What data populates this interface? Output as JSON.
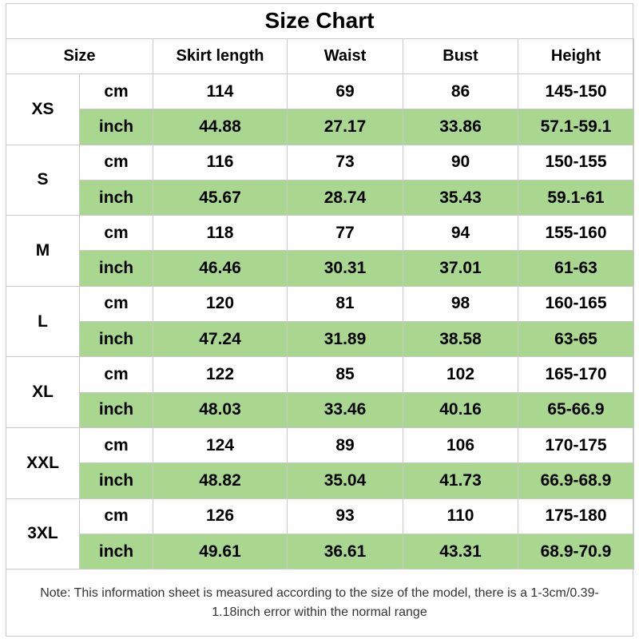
{
  "title": "Size Chart",
  "headers": {
    "size": "Size",
    "skirt_length": "Skirt length",
    "waist": "Waist",
    "bust": "Bust",
    "height": "Height"
  },
  "units": {
    "cm": "cm",
    "inch": "inch"
  },
  "colors": {
    "inch_row_fill": "#a9d790",
    "border": "#c9c9c9"
  },
  "rows": [
    {
      "size": "XS",
      "cm": [
        "114",
        "69",
        "86",
        "145-150"
      ],
      "inch": [
        "44.88",
        "27.17",
        "33.86",
        "57.1-59.1"
      ]
    },
    {
      "size": "S",
      "cm": [
        "116",
        "73",
        "90",
        "150-155"
      ],
      "inch": [
        "45.67",
        "28.74",
        "35.43",
        "59.1-61"
      ]
    },
    {
      "size": "M",
      "cm": [
        "118",
        "77",
        "94",
        "155-160"
      ],
      "inch": [
        "46.46",
        "30.31",
        "37.01",
        "61-63"
      ]
    },
    {
      "size": "L",
      "cm": [
        "120",
        "81",
        "98",
        "160-165"
      ],
      "inch": [
        "47.24",
        "31.89",
        "38.58",
        "63-65"
      ]
    },
    {
      "size": "XL",
      "cm": [
        "122",
        "85",
        "102",
        "165-170"
      ],
      "inch": [
        "48.03",
        "33.46",
        "40.16",
        "65-66.9"
      ]
    },
    {
      "size": "XXL",
      "cm": [
        "124",
        "89",
        "106",
        "170-175"
      ],
      "inch": [
        "48.82",
        "35.04",
        "41.73",
        "66.9-68.9"
      ]
    },
    {
      "size": "3XL",
      "cm": [
        "126",
        "93",
        "110",
        "175-180"
      ],
      "inch": [
        "49.61",
        "36.61",
        "43.31",
        "68.9-70.9"
      ]
    }
  ],
  "note": "Note: This information sheet is measured according to the size of the model, there is a 1-3cm/0.39-1.18inch error within the normal range"
}
